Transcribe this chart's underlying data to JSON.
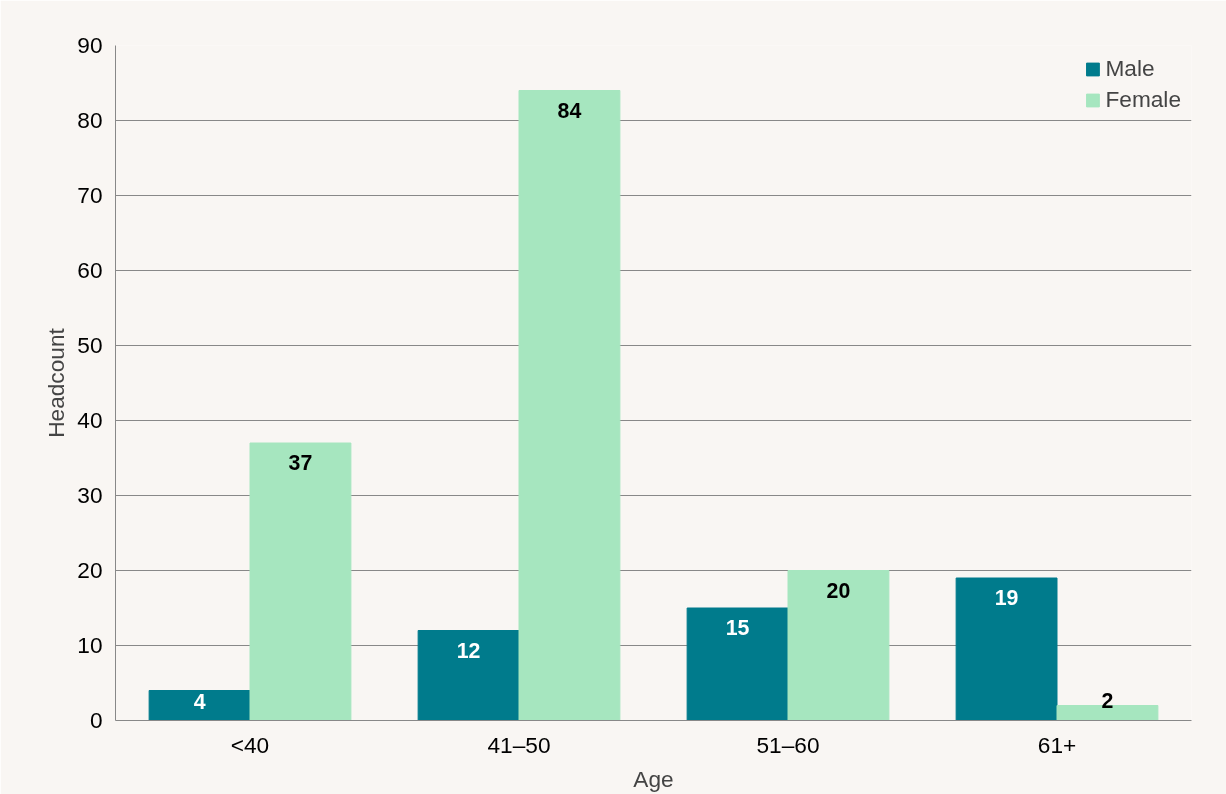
{
  "chart_data": {
    "type": "bar",
    "xlabel": "Age",
    "ylabel": "Headcount",
    "categories": [
      "<40",
      "41–50",
      "51–60",
      "61+"
    ],
    "series": [
      {
        "name": "Male",
        "color": "#007b8c",
        "values": [
          4,
          12,
          15,
          19
        ]
      },
      {
        "name": "Female",
        "color": "#a6e6bf",
        "values": [
          37,
          84,
          20,
          2
        ]
      }
    ],
    "ylim": [
      0,
      90
    ],
    "yticks": [
      0,
      10,
      20,
      30,
      40,
      50,
      60,
      70,
      80,
      90
    ],
    "grid": "y",
    "legend": "top right",
    "data_labels": true
  }
}
